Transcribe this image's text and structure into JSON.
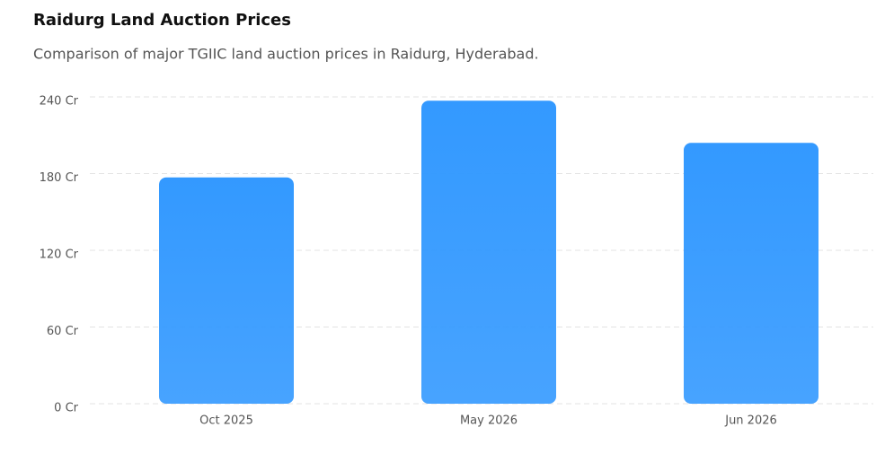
{
  "chart_data": {
    "type": "bar",
    "title": "Raidurg Land Auction Prices",
    "subtitle": "Comparison of major TGIIC land auction prices in Raidurg, Hyderabad.",
    "categories": [
      "Oct 2025",
      "May 2026",
      "Jun 2026"
    ],
    "values": [
      177,
      237,
      204
    ],
    "color": "#3399ff",
    "ylim": [
      0,
      240
    ],
    "yticks": [
      {
        "value": 0,
        "label": "0 Cr"
      },
      {
        "value": 60,
        "label": "60 Cr"
      },
      {
        "value": 120,
        "label": "120 Cr"
      },
      {
        "value": 180,
        "label": "180 Cr"
      },
      {
        "value": 240,
        "label": "240 Cr"
      }
    ],
    "grid": true
  }
}
